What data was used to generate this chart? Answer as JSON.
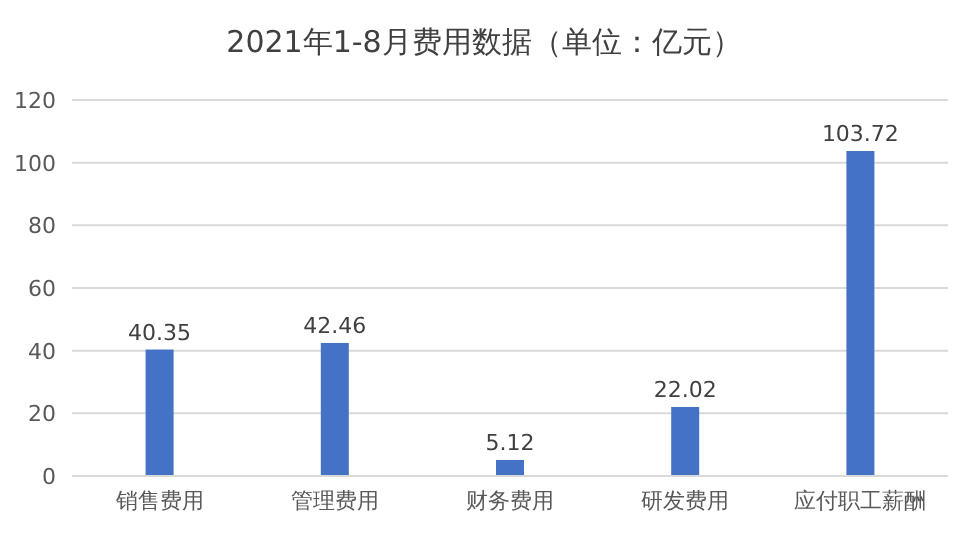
{
  "chart_data": {
    "type": "bar",
    "title": "2021年1-8月费用数据（单位：亿元）",
    "categories": [
      "销售费用",
      "管理费用",
      "财务费用",
      "研发费用",
      "应付职工薪酬"
    ],
    "values": [
      40.35,
      42.46,
      5.12,
      22.02,
      103.72
    ],
    "color": "#4472c4",
    "ylim": [
      0,
      120
    ],
    "yticks": [
      0,
      20,
      40,
      60,
      80,
      100,
      120
    ],
    "grid": "y",
    "data_labels": true
  }
}
